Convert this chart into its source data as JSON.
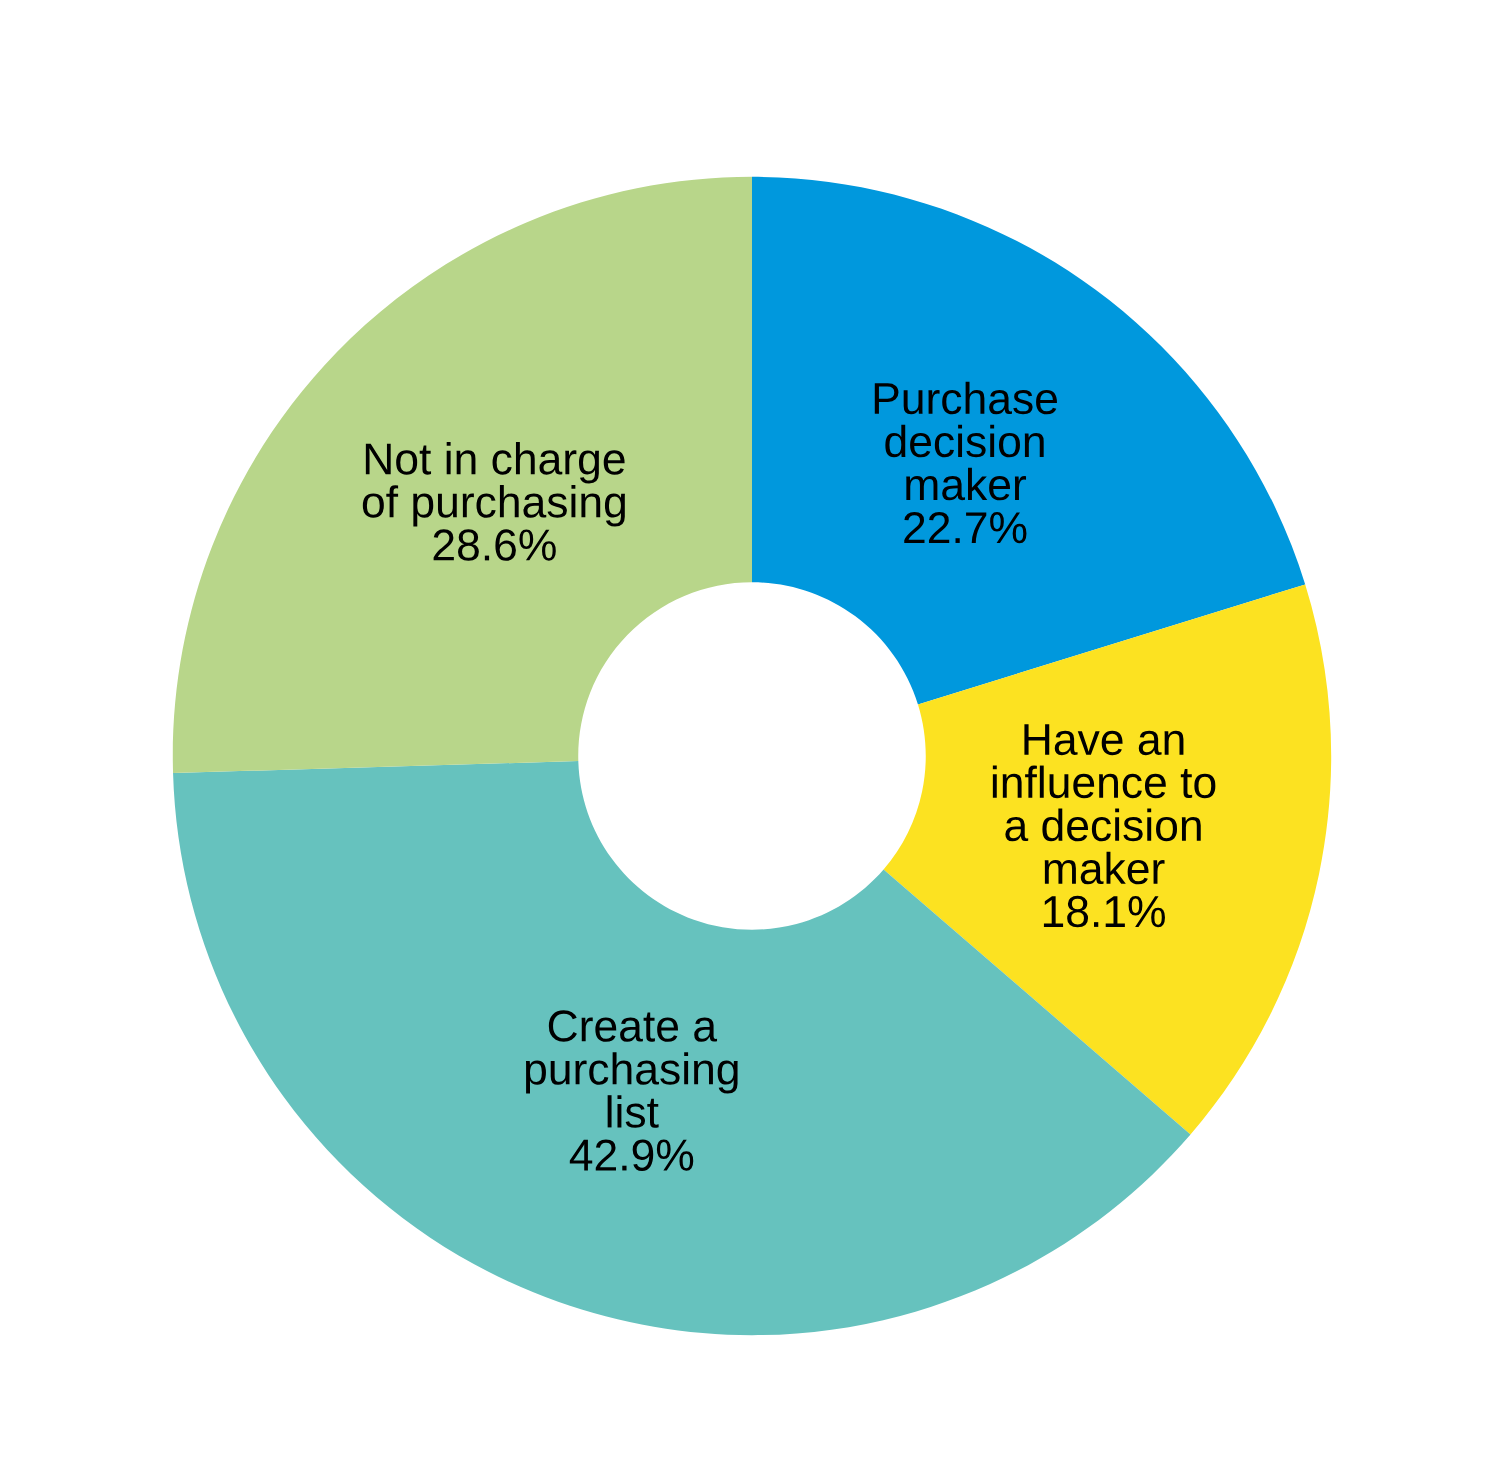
{
  "chart_data": {
    "type": "donut",
    "categories": [
      "Purchase\ndecision\nmaker",
      "Have an\ninfluence to\na decision\nmaker",
      "Create a\npurchasing\nlist",
      "Not in charge\nof purchasing"
    ],
    "values": [
      22.7,
      18.1,
      42.9,
      28.6
    ],
    "value_labels": [
      "22.7%",
      "18.1%",
      "42.9%",
      "28.6%"
    ],
    "colors": [
      "#0098dd",
      "#fce221",
      "#66c2be",
      "#b8d68a"
    ],
    "legend": false
  }
}
